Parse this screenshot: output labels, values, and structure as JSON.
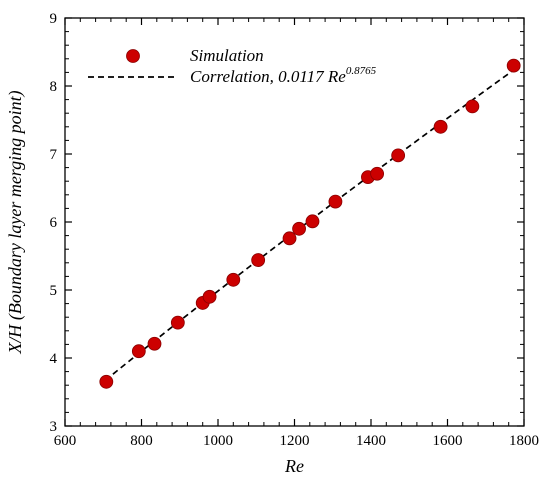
{
  "chart_data": {
    "type": "scatter",
    "xlabel": "Re",
    "ylabel": "X/H (Boundary layer merging point)",
    "xlim": [
      600,
      1800
    ],
    "ylim": [
      3,
      9
    ],
    "xticks": [
      600,
      800,
      1000,
      1200,
      1400,
      1600,
      1800
    ],
    "yticks": [
      3,
      4,
      5,
      6,
      7,
      8,
      9
    ],
    "xtick_labels": [
      "600",
      "800",
      "1000",
      "1200",
      "1400",
      "1600",
      "1800"
    ],
    "ytick_labels": [
      "3",
      "4",
      "5",
      "6",
      "7",
      "8",
      "9"
    ],
    "grid": false,
    "legend_position": "top-left",
    "series": [
      {
        "name": "Simulation",
        "marker": "circle",
        "color": "#cc0000",
        "x": [
          708,
          793,
          834,
          895,
          960,
          978,
          1040,
          1105,
          1187,
          1212,
          1247,
          1307,
          1392,
          1416,
          1471,
          1582,
          1665,
          1773
        ],
        "y": [
          3.65,
          4.1,
          4.21,
          4.52,
          4.81,
          4.9,
          5.15,
          5.44,
          5.76,
          5.9,
          6.01,
          6.3,
          6.66,
          6.71,
          6.98,
          7.4,
          7.7,
          8.3
        ]
      },
      {
        "name": "Correlation, 0.0117 Re",
        "name_superscript": "0.8765",
        "line_style": "dashed",
        "color": "#000000",
        "coefficient": 0.0117,
        "exponent": 0.8765,
        "x_range": [
          705,
          1775
        ]
      }
    ]
  }
}
